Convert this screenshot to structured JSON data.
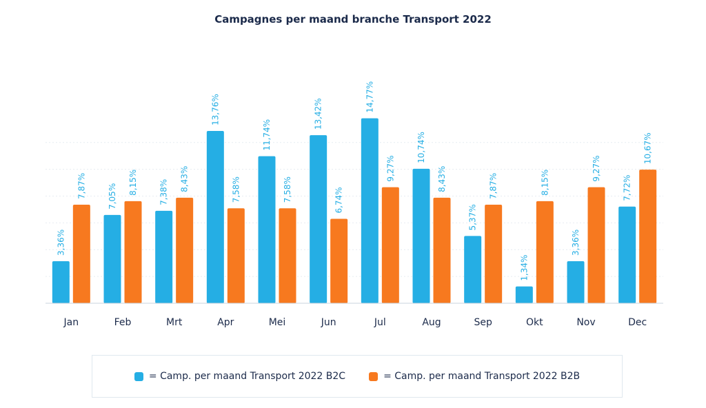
{
  "chart_data": {
    "type": "bar",
    "title": "Campagnes per maand branche Transport 2022",
    "xlabel": "",
    "ylabel": "",
    "ylim": [
      0,
      17
    ],
    "grid": true,
    "legend_position": "bottom",
    "categories": [
      "Jan",
      "Feb",
      "Mrt",
      "Apr",
      "Mei",
      "Jun",
      "Jul",
      "Aug",
      "Sep",
      "Okt",
      "Nov",
      "Dec"
    ],
    "series": [
      {
        "name": "Camp. per maand Transport 2022 B2C",
        "legend_label": "= Camp. per maand Transport 2022 B2C",
        "color": "#25aee4",
        "values": [
          3.36,
          7.05,
          7.38,
          13.76,
          11.74,
          13.42,
          14.77,
          10.74,
          5.37,
          1.34,
          3.36,
          7.72
        ],
        "labels": [
          "3,36%",
          "7,05%",
          "7,38%",
          "13,76%",
          "11,74%",
          "13,42%",
          "14,77%",
          "10,74%",
          "5,37%",
          "1,34%",
          "3,36%",
          "7,72%"
        ]
      },
      {
        "name": "Camp. per maand Transport 2022 B2B",
        "legend_label": "= Camp. per maand Transport 2022 B2B",
        "color": "#f7791f",
        "values": [
          7.87,
          8.15,
          8.43,
          7.58,
          7.58,
          6.74,
          9.27,
          8.43,
          7.87,
          8.15,
          9.27,
          10.67
        ],
        "labels": [
          "7,87%",
          "8,15%",
          "8,43%",
          "7,58%",
          "7,58%",
          "6,74%",
          "9,27%",
          "8,43%",
          "7,87%",
          "8,15%",
          "9,27%",
          "10,67%"
        ]
      }
    ]
  }
}
